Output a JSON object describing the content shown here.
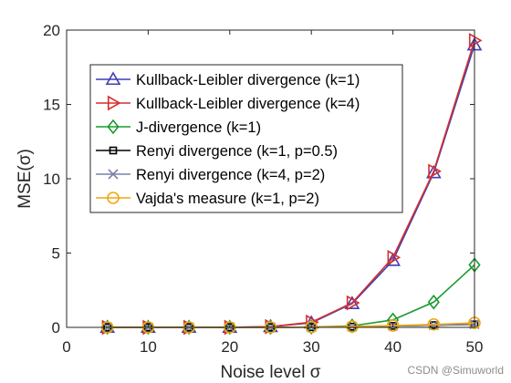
{
  "chart_data": {
    "type": "line",
    "title": "",
    "xlabel": "Noise level σ",
    "ylabel": "MSE(σ)",
    "xlim": [
      0,
      50
    ],
    "ylim": [
      0,
      20
    ],
    "x_ticks": [
      0,
      10,
      20,
      30,
      40,
      50
    ],
    "y_ticks": [
      0,
      5,
      10,
      15,
      20
    ],
    "x": [
      5,
      10,
      15,
      20,
      25,
      30,
      35,
      40,
      45,
      50
    ],
    "grid": false,
    "legend_position": "top-left",
    "series": [
      {
        "name": "Kullback-Leibler divergence (k=1)",
        "color": "#3f3fb2",
        "marker": "triangle-up",
        "values": [
          0.0,
          0.0,
          0.0,
          0.0,
          0.05,
          0.3,
          1.6,
          4.5,
          10.4,
          19.0
        ]
      },
      {
        "name": "Kullback-Leibler divergence (k=4)",
        "color": "#d62f2f",
        "marker": "triangle-right",
        "values": [
          0.0,
          0.0,
          0.0,
          0.0,
          0.05,
          0.35,
          1.65,
          4.7,
          10.5,
          19.3
        ]
      },
      {
        "name": "J-divergence (k=1)",
        "color": "#1a9a2e",
        "marker": "diamond",
        "values": [
          0.0,
          0.0,
          0.0,
          0.0,
          0.0,
          0.02,
          0.1,
          0.5,
          1.7,
          4.2
        ]
      },
      {
        "name": "Renyi divergence (k=1, p=0.5)",
        "color": "#000000",
        "marker": "square",
        "values": [
          0.0,
          0.0,
          0.0,
          0.0,
          0.0,
          0.02,
          0.05,
          0.1,
          0.15,
          0.2
        ]
      },
      {
        "name": "Renyi divergence (k=4, p=2)",
        "color": "#7782a8",
        "marker": "x",
        "values": [
          0.0,
          0.0,
          0.0,
          0.0,
          0.0,
          0.02,
          0.05,
          0.1,
          0.15,
          0.22
        ]
      },
      {
        "name": "Vajda's measure (k=1, p=2)",
        "color": "#f2a60f",
        "marker": "circle",
        "values": [
          0.0,
          0.0,
          0.0,
          0.0,
          0.0,
          0.02,
          0.06,
          0.12,
          0.2,
          0.3
        ]
      }
    ]
  },
  "watermark": "CSDN @Simuworld"
}
